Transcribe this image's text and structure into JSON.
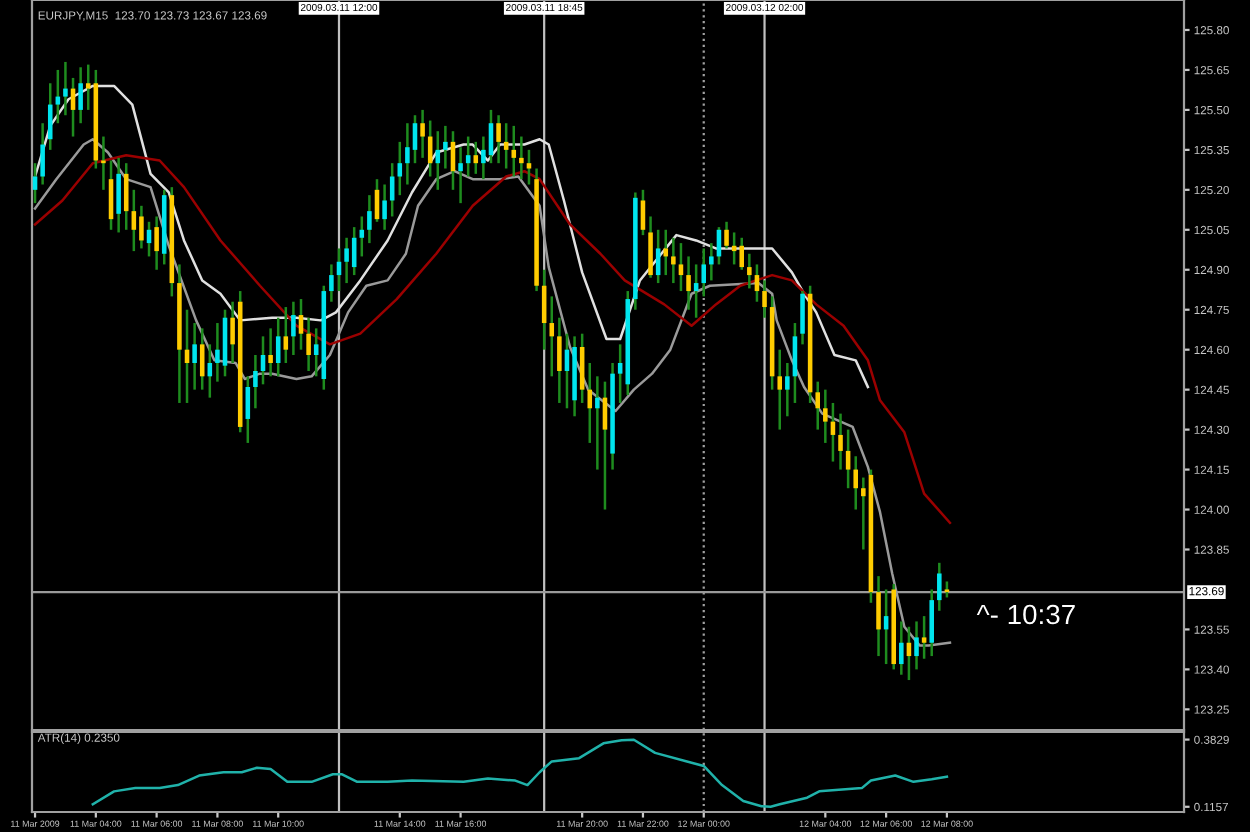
{
  "chart_data": [
    {
      "type": "candlestick",
      "title": "EURJPY,M15  123.70 123.73 123.67 123.69",
      "color": "#1e8c1e",
      "xlim": [
        "2009-03-11T01:54",
        "2009-03-12T15:48"
      ],
      "ylim": [
        123.1725,
        125.9125
      ],
      "tick_labels": "y",
      "yticks": [
        {
          "value": 125.8,
          "label": "125.80"
        },
        {
          "value": 125.65,
          "label": "125.65"
        },
        {
          "value": 125.5,
          "label": "125.50"
        },
        {
          "value": 125.35,
          "label": "125.35"
        },
        {
          "value": 125.2,
          "label": "125.20"
        },
        {
          "value": 125.05,
          "label": "125.05"
        },
        {
          "value": 124.9,
          "label": "124.90"
        },
        {
          "value": 124.75,
          "label": "124.75"
        },
        {
          "value": 124.6,
          "label": "124.60"
        },
        {
          "value": 124.45,
          "label": "124.45"
        },
        {
          "value": 124.3,
          "label": "124.30"
        },
        {
          "value": 124.15,
          "label": "124.15"
        },
        {
          "value": 124.0,
          "label": "124.00"
        },
        {
          "value": 123.85,
          "label": "123.85"
        },
        {
          "value": 123.55,
          "label": "123.55"
        },
        {
          "value": 123.4,
          "label": "123.40"
        },
        {
          "value": 123.25,
          "label": "123.25"
        }
      ],
      "ref_lines": [
        {
          "axis": "x",
          "value": "2009-03-11T12:00",
          "label": "2009.03.11 12:00",
          "color": "#c0c0c0",
          "line_style": "solid"
        },
        {
          "axis": "x",
          "value": "2009-03-11T18:45",
          "label": "2009.03.11 18:45",
          "color": "#c0c0c0",
          "line_style": "solid"
        },
        {
          "axis": "x",
          "value": "2009-03-12T00:00",
          "color": "#a0a0a0",
          "line_style": "dotted"
        },
        {
          "axis": "x",
          "value": "2009-03-12T02:00",
          "label": "2009.03.12 02:00",
          "color": "#c0c0c0",
          "line_style": "solid"
        },
        {
          "axis": "y",
          "value": 123.69,
          "label": "123.69",
          "color": "#9a9a9a",
          "line_style": "solid"
        }
      ],
      "annotations": [
        "^- 10:37"
      ],
      "series": [
        {
          "type": "candlestick",
          "x": [
            "2009-03-11T02:00",
            "2009-03-11T02:15",
            "2009-03-11T02:30",
            "2009-03-11T02:45",
            "2009-03-11T03:00",
            "2009-03-11T03:15",
            "2009-03-11T03:30",
            "2009-03-11T03:45",
            "2009-03-11T04:00",
            "2009-03-11T04:15",
            "2009-03-11T04:30",
            "2009-03-11T04:45",
            "2009-03-11T05:00",
            "2009-03-11T05:15",
            "2009-03-11T05:30",
            "2009-03-11T05:45",
            "2009-03-11T06:00",
            "2009-03-11T06:15",
            "2009-03-11T06:30",
            "2009-03-11T06:45",
            "2009-03-11T07:00",
            "2009-03-11T07:15",
            "2009-03-11T07:30",
            "2009-03-11T07:45",
            "2009-03-11T08:00",
            "2009-03-11T08:15",
            "2009-03-11T08:30",
            "2009-03-11T08:45",
            "2009-03-11T09:00",
            "2009-03-11T09:15",
            "2009-03-11T09:30",
            "2009-03-11T09:45",
            "2009-03-11T10:00",
            "2009-03-11T10:15",
            "2009-03-11T10:30",
            "2009-03-11T10:45",
            "2009-03-11T11:00",
            "2009-03-11T11:15",
            "2009-03-11T11:30",
            "2009-03-11T11:45",
            "2009-03-11T12:00",
            "2009-03-11T12:15",
            "2009-03-11T12:30",
            "2009-03-11T12:45",
            "2009-03-11T13:00",
            "2009-03-11T13:15",
            "2009-03-11T13:30",
            "2009-03-11T13:45",
            "2009-03-11T14:00",
            "2009-03-11T14:15",
            "2009-03-11T14:30",
            "2009-03-11T14:45",
            "2009-03-11T15:00",
            "2009-03-11T15:15",
            "2009-03-11T15:30",
            "2009-03-11T15:45",
            "2009-03-11T16:00",
            "2009-03-11T16:15",
            "2009-03-11T16:30",
            "2009-03-11T16:45",
            "2009-03-11T17:00",
            "2009-03-11T17:15",
            "2009-03-11T17:30",
            "2009-03-11T17:45",
            "2009-03-11T18:00",
            "2009-03-11T18:15",
            "2009-03-11T18:30",
            "2009-03-11T18:45",
            "2009-03-11T19:00",
            "2009-03-11T19:15",
            "2009-03-11T19:30",
            "2009-03-11T19:45",
            "2009-03-11T20:00",
            "2009-03-11T20:15",
            "2009-03-11T20:30",
            "2009-03-11T20:45",
            "2009-03-11T21:00",
            "2009-03-11T21:15",
            "2009-03-11T21:30",
            "2009-03-11T21:45",
            "2009-03-11T22:00",
            "2009-03-11T22:15",
            "2009-03-11T22:30",
            "2009-03-11T22:45",
            "2009-03-11T23:00",
            "2009-03-11T23:15",
            "2009-03-11T23:30",
            "2009-03-11T23:45",
            "2009-03-12T00:00",
            "2009-03-12T00:15",
            "2009-03-12T00:30",
            "2009-03-12T00:45",
            "2009-03-12T01:00",
            "2009-03-12T01:15",
            "2009-03-12T01:30",
            "2009-03-12T01:45",
            "2009-03-12T02:00",
            "2009-03-12T02:15",
            "2009-03-12T02:30",
            "2009-03-12T02:45",
            "2009-03-12T03:00",
            "2009-03-12T03:15",
            "2009-03-12T03:30",
            "2009-03-12T03:45",
            "2009-03-12T04:00",
            "2009-03-12T04:15",
            "2009-03-12T04:30",
            "2009-03-12T04:45",
            "2009-03-12T05:00",
            "2009-03-12T05:15",
            "2009-03-12T05:30",
            "2009-03-12T05:45",
            "2009-03-12T06:00",
            "2009-03-12T06:15",
            "2009-03-12T06:30",
            "2009-03-12T06:45",
            "2009-03-12T07:00",
            "2009-03-12T07:15",
            "2009-03-12T07:30",
            "2009-03-12T07:45",
            "2009-03-12T08:00"
          ],
          "ohlc": [
            [
              125.2,
              125.3,
              125.15,
              125.25
            ],
            [
              125.25,
              125.45,
              125.22,
              125.37
            ],
            [
              125.39,
              125.6,
              125.35,
              125.52
            ],
            [
              125.52,
              125.65,
              125.45,
              125.55
            ],
            [
              125.55,
              125.68,
              125.48,
              125.58
            ],
            [
              125.58,
              125.62,
              125.4,
              125.5
            ],
            [
              125.5,
              125.66,
              125.45,
              125.6
            ],
            [
              125.6,
              125.67,
              125.5,
              125.58
            ],
            [
              125.6,
              125.65,
              125.28,
              125.31
            ],
            [
              125.31,
              125.4,
              125.2,
              125.3
            ],
            [
              125.24,
              125.31,
              125.05,
              125.09
            ],
            [
              125.11,
              125.32,
              125.04,
              125.26
            ],
            [
              125.26,
              125.3,
              125.05,
              125.12
            ],
            [
              125.12,
              125.2,
              124.97,
              125.05
            ],
            [
              125.1,
              125.14,
              124.98,
              125.01
            ],
            [
              125.0,
              125.08,
              124.95,
              125.05
            ],
            [
              125.06,
              125.1,
              124.9,
              124.97
            ],
            [
              124.96,
              125.2,
              124.92,
              125.18
            ],
            [
              125.18,
              125.21,
              124.8,
              124.85
            ],
            [
              124.85,
              124.92,
              124.4,
              124.6
            ],
            [
              124.6,
              124.75,
              124.4,
              124.55
            ],
            [
              124.55,
              124.7,
              124.45,
              124.62
            ],
            [
              124.62,
              124.68,
              124.45,
              124.5
            ],
            [
              124.5,
              124.62,
              124.42,
              124.55
            ],
            [
              124.55,
              124.7,
              124.48,
              124.6
            ],
            [
              124.54,
              124.75,
              124.5,
              124.72
            ],
            [
              124.72,
              124.78,
              124.55,
              124.62
            ],
            [
              124.78,
              124.82,
              124.29,
              124.31
            ],
            [
              124.34,
              124.5,
              124.25,
              124.46
            ],
            [
              124.46,
              124.58,
              124.38,
              124.52
            ],
            [
              124.52,
              124.65,
              124.47,
              124.58
            ],
            [
              124.58,
              124.68,
              124.5,
              124.55
            ],
            [
              124.55,
              124.72,
              124.5,
              124.65
            ],
            [
              124.65,
              124.76,
              124.55,
              124.6
            ],
            [
              124.65,
              124.78,
              124.58,
              124.73
            ],
            [
              124.73,
              124.79,
              124.6,
              124.66
            ],
            [
              124.66,
              124.72,
              124.52,
              124.58
            ],
            [
              124.58,
              124.68,
              124.5,
              124.62
            ],
            [
              124.49,
              124.84,
              124.45,
              124.82
            ],
            [
              124.82,
              124.92,
              124.78,
              124.88
            ],
            [
              124.88,
              124.98,
              124.82,
              124.93
            ],
            [
              124.93,
              125.02,
              124.85,
              124.98
            ],
            [
              124.91,
              125.06,
              124.88,
              125.02
            ],
            [
              125.02,
              125.1,
              124.95,
              125.05
            ],
            [
              125.05,
              125.18,
              125.0,
              125.12
            ],
            [
              125.2,
              125.24,
              125.08,
              125.09
            ],
            [
              125.09,
              125.22,
              125.05,
              125.16
            ],
            [
              125.16,
              125.3,
              125.1,
              125.25
            ],
            [
              125.25,
              125.38,
              125.18,
              125.3
            ],
            [
              125.3,
              125.45,
              125.22,
              125.36
            ],
            [
              125.35,
              125.48,
              125.3,
              125.45
            ],
            [
              125.45,
              125.5,
              125.32,
              125.4
            ],
            [
              125.4,
              125.46,
              125.25,
              125.3
            ],
            [
              125.3,
              125.42,
              125.2,
              125.35
            ],
            [
              125.35,
              125.44,
              125.28,
              125.38
            ],
            [
              125.38,
              125.42,
              125.2,
              125.27
            ],
            [
              125.27,
              125.36,
              125.15,
              125.3
            ],
            [
              125.3,
              125.4,
              125.25,
              125.33
            ],
            [
              125.33,
              125.38,
              125.26,
              125.3
            ],
            [
              125.3,
              125.4,
              125.24,
              125.35
            ],
            [
              125.33,
              125.5,
              125.3,
              125.45
            ],
            [
              125.45,
              125.48,
              125.3,
              125.38
            ],
            [
              125.38,
              125.45,
              125.28,
              125.35
            ],
            [
              125.35,
              125.44,
              125.25,
              125.32
            ],
            [
              125.32,
              125.4,
              125.24,
              125.3
            ],
            [
              125.3,
              125.35,
              125.22,
              125.28
            ],
            [
              125.24,
              125.28,
              124.82,
              124.84
            ],
            [
              124.84,
              124.9,
              124.6,
              124.7
            ],
            [
              124.7,
              124.8,
              124.5,
              124.65
            ],
            [
              124.65,
              124.72,
              124.4,
              124.52
            ],
            [
              124.52,
              124.66,
              124.38,
              124.6
            ],
            [
              124.41,
              124.65,
              124.35,
              124.61
            ],
            [
              124.61,
              124.66,
              124.4,
              124.45
            ],
            [
              124.45,
              124.55,
              124.25,
              124.38
            ],
            [
              124.38,
              124.5,
              124.15,
              124.42
            ],
            [
              124.42,
              124.48,
              124.0,
              124.3
            ],
            [
              124.21,
              124.55,
              124.15,
              124.51
            ],
            [
              124.51,
              124.62,
              124.4,
              124.55
            ],
            [
              124.47,
              124.82,
              124.43,
              124.79
            ],
            [
              124.79,
              125.19,
              124.75,
              125.17
            ],
            [
              125.16,
              125.2,
              125.03,
              125.05
            ],
            [
              125.04,
              125.1,
              124.87,
              124.88
            ],
            [
              124.88,
              125.05,
              124.85,
              124.98
            ],
            [
              124.98,
              125.05,
              124.88,
              124.95
            ],
            [
              124.95,
              125.02,
              124.85,
              124.92
            ],
            [
              124.92,
              125.0,
              124.82,
              124.88
            ],
            [
              124.88,
              124.95,
              124.75,
              124.82
            ],
            [
              124.82,
              124.92,
              124.72,
              124.85
            ],
            [
              124.85,
              124.98,
              124.8,
              124.92
            ],
            [
              124.92,
              125.0,
              124.86,
              124.95
            ],
            [
              124.95,
              125.06,
              124.92,
              125.05
            ],
            [
              125.05,
              125.08,
              124.98,
              124.99
            ],
            [
              124.99,
              125.04,
              124.92,
              124.97
            ],
            [
              124.99,
              125.02,
              124.9,
              124.91
            ],
            [
              124.91,
              124.96,
              124.83,
              124.88
            ],
            [
              124.88,
              124.92,
              124.78,
              124.82
            ],
            [
              124.82,
              124.86,
              124.72,
              124.76
            ],
            [
              124.76,
              124.8,
              124.45,
              124.5
            ],
            [
              124.5,
              124.6,
              124.3,
              124.45
            ],
            [
              124.45,
              124.55,
              124.35,
              124.5
            ],
            [
              124.5,
              124.7,
              124.4,
              124.65
            ],
            [
              124.66,
              124.82,
              124.62,
              124.81
            ],
            [
              124.81,
              124.84,
              124.4,
              124.44
            ],
            [
              124.44,
              124.48,
              124.3,
              124.38
            ],
            [
              124.38,
              124.45,
              124.25,
              124.33
            ],
            [
              124.33,
              124.4,
              124.18,
              124.28
            ],
            [
              124.28,
              124.36,
              124.15,
              124.22
            ],
            [
              124.22,
              124.3,
              124.08,
              124.15
            ],
            [
              124.15,
              124.2,
              124.0,
              124.08
            ],
            [
              124.08,
              124.12,
              123.85,
              124.05
            ],
            [
              124.13,
              124.15,
              123.65,
              123.69
            ],
            [
              123.69,
              123.75,
              123.45,
              123.55
            ],
            [
              123.55,
              123.7,
              123.42,
              123.6
            ],
            [
              123.7,
              123.72,
              123.4,
              123.42
            ],
            [
              123.42,
              123.58,
              123.38,
              123.5
            ],
            [
              123.5,
              123.56,
              123.36,
              123.45
            ],
            [
              123.45,
              123.58,
              123.4,
              123.52
            ],
            [
              123.52,
              123.6,
              123.44,
              123.5
            ],
            [
              123.5,
              123.7,
              123.45,
              123.66
            ],
            [
              123.66,
              123.8,
              123.62,
              123.76
            ],
            [
              123.7,
              123.73,
              123.67,
              123.69
            ]
          ],
          "colors": [
            "#00e5ee",
            "#00e5ee",
            "#00e5ee",
            "#00e5ee",
            "#00e5ee",
            "#ffcc00",
            "#00e5ee",
            "#ffcc00",
            "#ffcc00",
            "#ffcc00",
            "#ffcc00",
            "#00e5ee",
            "#ffcc00",
            "#ffcc00",
            "#ffcc00",
            "#00e5ee",
            "#ffcc00",
            "#00e5ee",
            "#ffcc00",
            "#ffcc00",
            "#ffcc00",
            "#00e5ee",
            "#ffcc00",
            "#00e5ee",
            "#00e5ee",
            "#00e5ee",
            "#ffcc00",
            "#ffcc00",
            "#00e5ee",
            "#00e5ee",
            "#00e5ee",
            "#ffcc00",
            "#00e5ee",
            "#ffcc00",
            "#00e5ee",
            "#ffcc00",
            "#ffcc00",
            "#00e5ee",
            "#00e5ee",
            "#00e5ee",
            "#00e5ee",
            "#00e5ee",
            "#00e5ee",
            "#00e5ee",
            "#00e5ee",
            "#ffcc00",
            "#00e5ee",
            "#00e5ee",
            "#00e5ee",
            "#00e5ee",
            "#00e5ee",
            "#ffcc00",
            "#ffcc00",
            "#00e5ee",
            "#00e5ee",
            "#ffcc00",
            "#00e5ee",
            "#00e5ee",
            "#ffcc00",
            "#00e5ee",
            "#00e5ee",
            "#ffcc00",
            "#ffcc00",
            "#ffcc00",
            "#ffcc00",
            "#ffcc00",
            "#ffcc00",
            "#ffcc00",
            "#ffcc00",
            "#ffcc00",
            "#00e5ee",
            "#00e5ee",
            "#ffcc00",
            "#ffcc00",
            "#00e5ee",
            "#ffcc00",
            "#00e5ee",
            "#00e5ee",
            "#00e5ee",
            "#00e5ee",
            "#ffcc00",
            "#ffcc00",
            "#00e5ee",
            "#ffcc00",
            "#ffcc00",
            "#ffcc00",
            "#ffcc00",
            "#00e5ee",
            "#00e5ee",
            "#00e5ee",
            "#00e5ee",
            "#ffcc00",
            "#ffcc00",
            "#ffcc00",
            "#ffcc00",
            "#ffcc00",
            "#ffcc00",
            "#ffcc00",
            "#ffcc00",
            "#00e5ee",
            "#00e5ee",
            "#00e5ee",
            "#ffcc00",
            "#ffcc00",
            "#ffcc00",
            "#ffcc00",
            "#ffcc00",
            "#ffcc00",
            "#ffcc00",
            "#ffcc00",
            "#ffcc00",
            "#ffcc00",
            "#00e5ee",
            "#ffcc00",
            "#00e5ee",
            "#ffcc00",
            "#00e5ee",
            "#ffcc00",
            "#00e5ee",
            "#00e5ee",
            "#ffcc00"
          ]
        },
        {
          "type": "line",
          "color": "#e0e0e0",
          "x": [
            "2009-03-11T02:00",
            "2009-03-11T02:30",
            "2009-03-11T03:06",
            "2009-03-11T03:54",
            "2009-03-11T04:36",
            "2009-03-11T05:12",
            "2009-03-11T05:48",
            "2009-03-11T06:24",
            "2009-03-11T06:54",
            "2009-03-11T07:30",
            "2009-03-11T08:06",
            "2009-03-11T08:45",
            "2009-03-11T09:48",
            "2009-03-11T10:36",
            "2009-03-11T11:24",
            "2009-03-11T11:54",
            "2009-03-11T12:42",
            "2009-03-11T13:36",
            "2009-03-11T14:24",
            "2009-03-11T15:12",
            "2009-03-11T16:06",
            "2009-03-11T16:24",
            "2009-03-11T16:54",
            "2009-03-11T17:18",
            "2009-03-11T18:06",
            "2009-03-11T18:36",
            "2009-03-11T18:54",
            "2009-03-11T19:24",
            "2009-03-11T20:00",
            "2009-03-11T20:48",
            "2009-03-11T21:15",
            "2009-03-11T21:54",
            "2009-03-11T23:06",
            "2009-03-11T23:45",
            "2009-03-12T00:24",
            "2009-03-12T01:12",
            "2009-03-12T02:15",
            "2009-03-12T02:54",
            "2009-03-12T03:18",
            "2009-03-12T03:42",
            "2009-03-12T04:18",
            "2009-03-12T05:00",
            "2009-03-12T05:24"
          ],
          "values": [
            125.25,
            125.44,
            125.54,
            125.59,
            125.59,
            125.52,
            125.26,
            125.19,
            125.01,
            124.86,
            124.81,
            124.71,
            124.72,
            124.72,
            124.71,
            124.74,
            124.86,
            125.01,
            125.19,
            125.34,
            125.37,
            125.37,
            125.31,
            125.37,
            125.37,
            125.39,
            125.37,
            125.16,
            124.89,
            124.64,
            124.64,
            124.86,
            125.03,
            125.01,
            124.98,
            124.98,
            124.98,
            124.89,
            124.81,
            124.74,
            124.58,
            124.56,
            124.46
          ]
        },
        {
          "type": "line",
          "color": "#9a9a9a",
          "x": [
            "2009-03-11T02:00",
            "2009-03-11T02:42",
            "2009-03-11T03:36",
            "2009-03-11T03:54",
            "2009-03-11T04:24",
            "2009-03-11T05:00",
            "2009-03-11T05:48",
            "2009-03-11T06:24",
            "2009-03-11T07:18",
            "2009-03-11T07:54",
            "2009-03-11T08:36",
            "2009-03-11T08:54",
            "2009-03-11T09:24",
            "2009-03-11T09:48",
            "2009-03-11T10:36",
            "2009-03-11T11:06",
            "2009-03-11T11:42",
            "2009-03-11T12:18",
            "2009-03-11T12:54",
            "2009-03-11T13:36",
            "2009-03-11T14:12",
            "2009-03-11T14:36",
            "2009-03-11T15:12",
            "2009-03-11T15:48",
            "2009-03-11T16:24",
            "2009-03-11T17:18",
            "2009-03-11T17:54",
            "2009-03-11T18:36",
            "2009-03-11T18:54",
            "2009-03-11T19:36",
            "2009-03-11T20:12",
            "2009-03-11T21:06",
            "2009-03-11T21:42",
            "2009-03-11T22:18",
            "2009-03-11T22:54",
            "2009-03-11T23:36",
            "2009-03-12T00:12",
            "2009-03-12T01:48",
            "2009-03-12T02:15",
            "2009-03-12T02:24",
            "2009-03-12T02:54",
            "2009-03-12T03:18",
            "2009-03-12T03:54",
            "2009-03-12T04:54",
            "2009-03-12T05:24",
            "2009-03-12T05:48",
            "2009-03-12T06:12",
            "2009-03-12T06:36",
            "2009-03-12T07:06",
            "2009-03-12T07:24",
            "2009-03-12T08:06"
          ],
          "values": [
            125.13,
            125.24,
            125.37,
            125.39,
            125.34,
            125.24,
            125.21,
            124.99,
            124.71,
            124.56,
            124.55,
            124.49,
            124.51,
            124.51,
            124.49,
            124.5,
            124.58,
            124.74,
            124.84,
            124.86,
            124.96,
            125.14,
            125.24,
            125.27,
            125.24,
            125.24,
            125.25,
            125.14,
            124.91,
            124.61,
            124.45,
            124.37,
            124.45,
            124.51,
            124.6,
            124.81,
            124.84,
            124.85,
            124.81,
            124.71,
            124.56,
            124.46,
            124.36,
            124.31,
            124.16,
            123.99,
            123.76,
            123.56,
            123.49,
            123.49,
            123.5
          ]
        },
        {
          "type": "line",
          "color": "#9b0000",
          "x": [
            "2009-03-11T02:00",
            "2009-03-11T02:54",
            "2009-03-11T03:54",
            "2009-03-11T05:00",
            "2009-03-11T06:06",
            "2009-03-11T06:54",
            "2009-03-11T08:06",
            "2009-03-11T09:24",
            "2009-03-11T10:36",
            "2009-03-11T11:42",
            "2009-03-11T12:42",
            "2009-03-11T13:54",
            "2009-03-11T15:12",
            "2009-03-11T16:24",
            "2009-03-11T17:30",
            "2009-03-11T18:06",
            "2009-03-11T18:36",
            "2009-03-11T19:36",
            "2009-03-11T20:36",
            "2009-03-11T21:24",
            "2009-03-11T22:42",
            "2009-03-11T23:36",
            "2009-03-12T00:24",
            "2009-03-12T01:12",
            "2009-03-12T02:15",
            "2009-03-12T02:54",
            "2009-03-12T03:42",
            "2009-03-12T04:36",
            "2009-03-12T05:24",
            "2009-03-12T05:48",
            "2009-03-12T06:36",
            "2009-03-12T07:15",
            "2009-03-12T08:06"
          ],
          "values": [
            125.07,
            125.16,
            125.3,
            125.33,
            125.31,
            125.21,
            125.01,
            124.84,
            124.69,
            124.62,
            124.66,
            124.79,
            124.96,
            125.14,
            125.25,
            125.27,
            125.24,
            125.07,
            124.96,
            124.86,
            124.77,
            124.69,
            124.77,
            124.84,
            124.88,
            124.86,
            124.77,
            124.69,
            124.56,
            124.41,
            124.29,
            124.06,
            123.95
          ]
        }
      ]
    },
    {
      "type": "line",
      "title": "ATR(14) 0.2350",
      "color": "#20b2aa",
      "xlim": [
        "2009-03-11T01:54",
        "2009-03-12T15:48"
      ],
      "ylim": [
        0.095,
        0.413
      ],
      "yticks": [
        0.3829,
        0.1157
      ],
      "xticks": [
        {
          "value": "2009-03-11T02:00",
          "label": "11 Mar 2009"
        },
        {
          "value": "2009-03-11T04:00",
          "label": "11 Mar 04:00"
        },
        {
          "value": "2009-03-11T06:00",
          "label": "11 Mar 06:00"
        },
        {
          "value": "2009-03-11T08:00",
          "label": "11 Mar 08:00"
        },
        {
          "value": "2009-03-11T10:00",
          "label": "11 Mar 10:00"
        },
        {
          "value": "2009-03-11T14:00",
          "label": "11 Mar 14:00"
        },
        {
          "value": "2009-03-11T16:00",
          "label": "11 Mar 16:00"
        },
        {
          "value": "2009-03-11T20:00",
          "label": "11 Mar 20:00"
        },
        {
          "value": "2009-03-11T22:00",
          "label": "11 Mar 22:00"
        },
        {
          "value": "2009-03-12T00:00",
          "label": "12 Mar 00:00"
        },
        {
          "value": "2009-03-12T04:00",
          "label": "12 Mar 04:00"
        },
        {
          "value": "2009-03-12T06:00",
          "label": "12 Mar 06:00"
        },
        {
          "value": "2009-03-12T08:00",
          "label": "12 Mar 08:00"
        }
      ],
      "ref_lines": [
        {
          "axis": "x",
          "value": "2009-03-11T12:00",
          "color": "#c0c0c0",
          "line_style": "solid"
        },
        {
          "axis": "x",
          "value": "2009-03-11T18:45",
          "color": "#c0c0c0",
          "line_style": "solid"
        },
        {
          "axis": "x",
          "value": "2009-03-12T00:00",
          "color": "#a0a0a0",
          "line_style": "dotted"
        },
        {
          "axis": "x",
          "value": "2009-03-12T02:00",
          "color": "#c0c0c0",
          "line_style": "solid"
        }
      ],
      "x": [
        "2009-03-11T03:54",
        "2009-03-11T04:36",
        "2009-03-11T05:18",
        "2009-03-11T06:06",
        "2009-03-11T06:42",
        "2009-03-11T07:24",
        "2009-03-11T08:12",
        "2009-03-11T08:48",
        "2009-03-11T09:18",
        "2009-03-11T09:45",
        "2009-03-11T10:18",
        "2009-03-11T11:06",
        "2009-03-11T11:48",
        "2009-03-11T12:06",
        "2009-03-11T12:36",
        "2009-03-11T13:36",
        "2009-03-11T14:24",
        "2009-03-11T16:06",
        "2009-03-11T16:54",
        "2009-03-11T17:48",
        "2009-03-11T18:12",
        "2009-03-11T18:36",
        "2009-03-11T19:00",
        "2009-03-11T19:54",
        "2009-03-11T20:42",
        "2009-03-11T21:18",
        "2009-03-11T21:42",
        "2009-03-11T22:24",
        "2009-03-11T23:36",
        "2009-03-12T00:00",
        "2009-03-12T00:36",
        "2009-03-12T01:18",
        "2009-03-12T01:54",
        "2009-03-12T02:12",
        "2009-03-12T02:30",
        "2009-03-12T03:24",
        "2009-03-12T03:48",
        "2009-03-12T05:12",
        "2009-03-12T05:30",
        "2009-03-12T06:18",
        "2009-03-12T06:54",
        "2009-03-12T07:30",
        "2009-03-12T08:00"
      ],
      "values": [
        0.126,
        0.177,
        0.19,
        0.19,
        0.202,
        0.24,
        0.253,
        0.253,
        0.271,
        0.266,
        0.215,
        0.215,
        0.245,
        0.245,
        0.215,
        0.215,
        0.22,
        0.215,
        0.228,
        0.22,
        0.202,
        0.253,
        0.296,
        0.309,
        0.368,
        0.38,
        0.382,
        0.33,
        0.291,
        0.278,
        0.202,
        0.139,
        0.118,
        0.116,
        0.126,
        0.152,
        0.177,
        0.19,
        0.22,
        0.24,
        0.215,
        0.225,
        0.235
      ]
    }
  ]
}
